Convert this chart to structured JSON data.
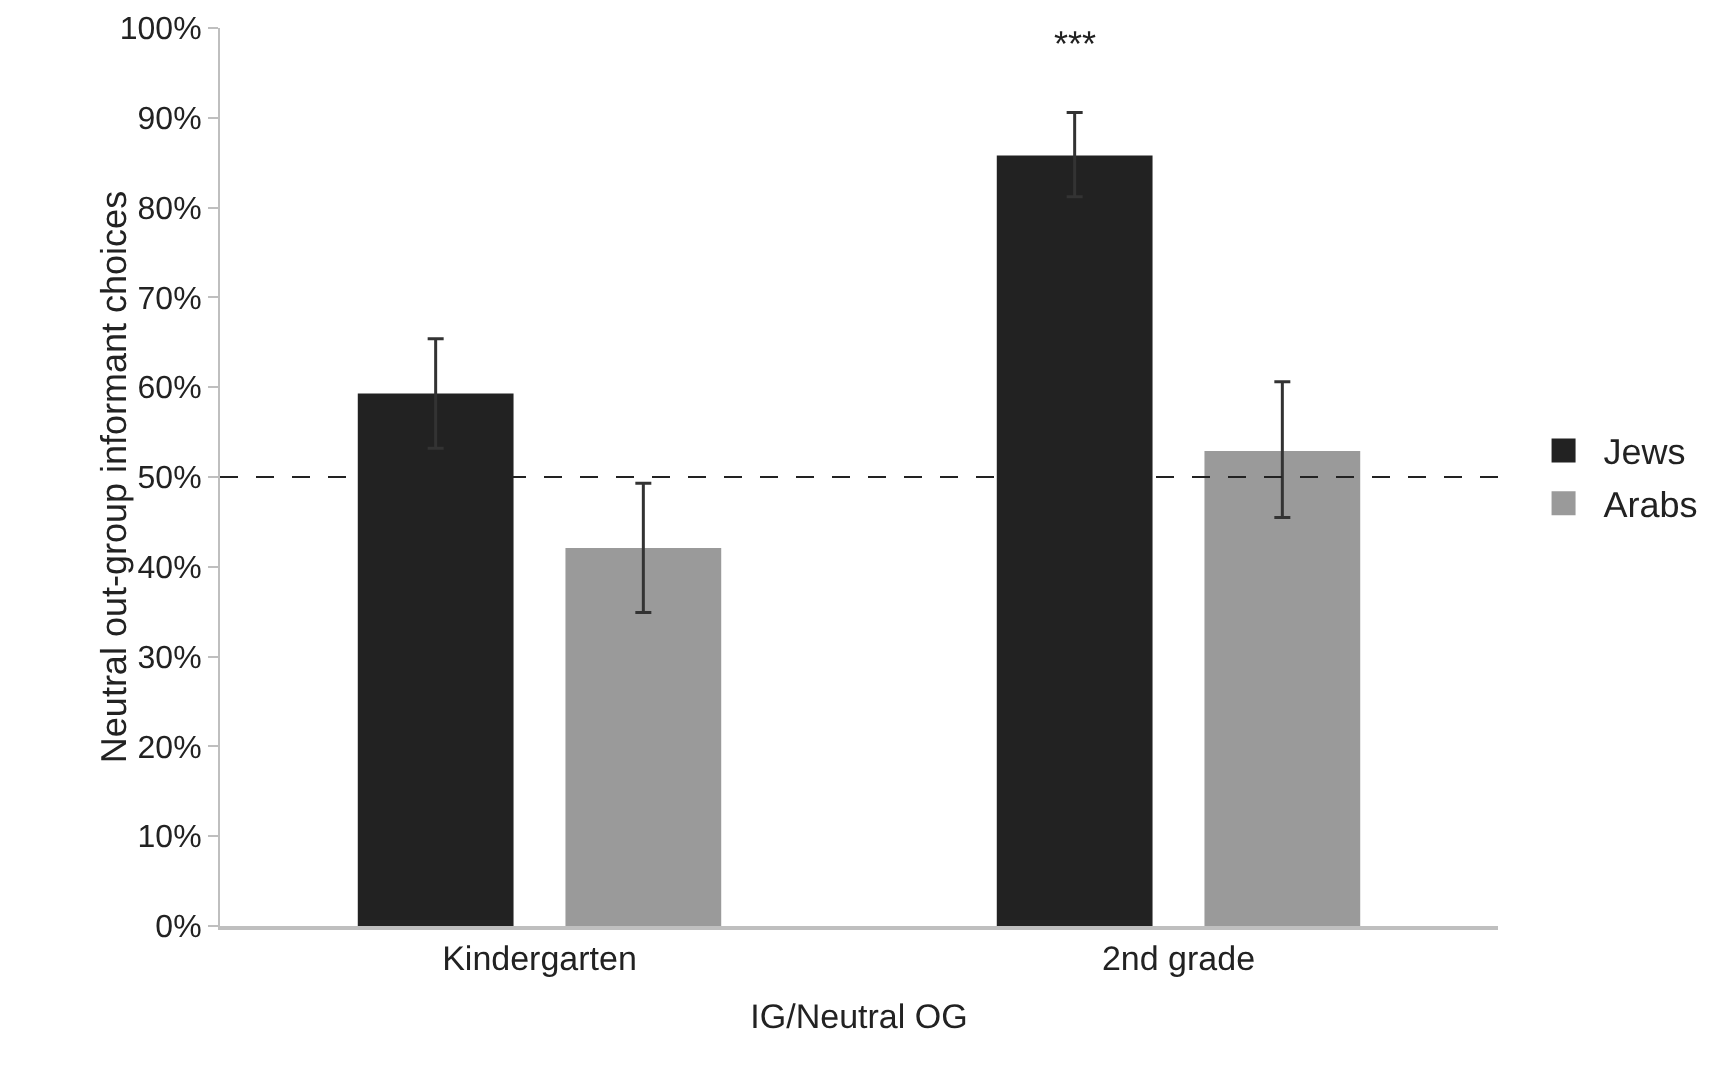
{
  "chart_data": {
    "type": "bar",
    "xlabel": "IG/Neutral OG",
    "ylabel": "Neutral out-group informant choices",
    "categories": [
      "Kindergarten",
      "2nd grade"
    ],
    "series": [
      {
        "name": "Jews",
        "color": "#222222",
        "values": [
          59.3,
          85.8
        ],
        "errors": [
          [
            53.2,
            65.4
          ],
          [
            81.2,
            90.6
          ]
        ]
      },
      {
        "name": "Arabs",
        "color": "#9a9a9a",
        "values": [
          42.1,
          52.9
        ],
        "errors": [
          [
            34.9,
            49.3
          ],
          [
            45.5,
            60.6
          ]
        ]
      }
    ],
    "ylim": [
      0,
      100
    ],
    "yticks": [
      {
        "value": 0,
        "label": "0%"
      },
      {
        "value": 10,
        "label": "10%"
      },
      {
        "value": 20,
        "label": "20%"
      },
      {
        "value": 30,
        "label": "30%"
      },
      {
        "value": 40,
        "label": "40%"
      },
      {
        "value": 50,
        "label": "50%"
      },
      {
        "value": 60,
        "label": "60%"
      },
      {
        "value": 70,
        "label": "70%"
      },
      {
        "value": 80,
        "label": "80%"
      },
      {
        "value": 90,
        "label": "90%"
      },
      {
        "value": 100,
        "label": "100%"
      }
    ],
    "ref_lines": [
      {
        "axis": "y",
        "value": 50,
        "line_style": "dashed",
        "color": "#222222"
      }
    ],
    "annotations": [
      "***"
    ],
    "grid": false,
    "legend": "right"
  }
}
